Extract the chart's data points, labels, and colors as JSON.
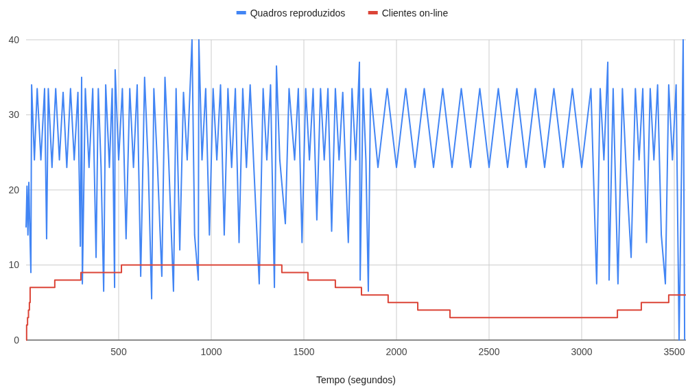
{
  "chart_data": {
    "type": "line",
    "xlabel": "Tempo (segundos)",
    "xlim": [
      0,
      3563
    ],
    "xticks": [
      500,
      1000,
      1500,
      2000,
      2500,
      3000,
      3500
    ],
    "ylim": [
      0,
      40
    ],
    "yticks": [
      0,
      10,
      20,
      30,
      40
    ],
    "grid": true,
    "legend": "top",
    "series": [
      {
        "name": "Quadros reproduzidos",
        "color": "#4285f4",
        "x": [
          0,
          5,
          10,
          15,
          20,
          26,
          30,
          45,
          60,
          80,
          100,
          111,
          120,
          140,
          160,
          180,
          200,
          220,
          240,
          260,
          280,
          293,
          300,
          304,
          320,
          340,
          360,
          378,
          390,
          405,
          419,
          430,
          450,
          465,
          478,
          481,
          500,
          520,
          540,
          560,
          580,
          600,
          619,
          640,
          660,
          678,
          690,
          710,
          733,
          750,
          770,
          796,
          810,
          830,
          850,
          870,
          896,
          910,
          930,
          933,
          950,
          970,
          990,
          1010,
          1030,
          1050,
          1070,
          1090,
          1110,
          1130,
          1150,
          1170,
          1190,
          1210,
          1230,
          1259,
          1280,
          1300,
          1320,
          1341,
          1352,
          1370,
          1400,
          1420,
          1450,
          1470,
          1490,
          1510,
          1530,
          1550,
          1570,
          1590,
          1610,
          1630,
          1650,
          1670,
          1690,
          1710,
          1740,
          1760,
          1780,
          1800,
          1804,
          1820,
          1835,
          1848,
          1860,
          1900,
          1950,
          2000,
          2050,
          2100,
          2150,
          2200,
          2250,
          2300,
          2350,
          2400,
          2450,
          2500,
          2550,
          2600,
          2650,
          2700,
          2750,
          2800,
          2850,
          2900,
          2950,
          3000,
          3050,
          3081,
          3100,
          3120,
          3141,
          3148,
          3170,
          3196,
          3220,
          3240,
          3267,
          3290,
          3310,
          3330,
          3350,
          3370,
          3390,
          3410,
          3430,
          3452,
          3470,
          3490,
          3510,
          3526,
          3540,
          3548,
          3556
        ],
        "values": [
          15,
          20.5,
          14,
          21,
          15,
          9,
          34,
          24,
          33.5,
          24,
          33.5,
          13.5,
          33.5,
          23,
          33.5,
          24,
          33,
          23,
          33.5,
          24,
          33,
          12.5,
          35,
          7.5,
          33.5,
          23,
          33.5,
          11,
          33.5,
          23,
          6.5,
          34,
          23,
          33.5,
          7,
          36,
          24,
          33.5,
          13.5,
          33.5,
          23,
          34,
          8.5,
          35,
          23,
          5.5,
          33.5,
          23,
          8.5,
          35,
          24,
          6.5,
          33.5,
          12,
          33,
          24,
          40,
          14,
          8,
          40,
          24,
          33.5,
          14,
          33.5,
          24,
          34,
          14,
          33.5,
          23,
          33.5,
          13,
          33.5,
          23,
          34,
          23,
          7.5,
          33.5,
          24,
          34,
          7,
          36.5,
          24,
          15.5,
          33.5,
          24,
          33.5,
          13,
          33.5,
          24,
          33.5,
          16,
          33.5,
          24,
          33.5,
          14.5,
          33.5,
          24,
          33,
          13,
          33.5,
          24,
          37,
          8,
          33.5,
          24,
          6.5,
          33.5,
          23,
          33.5,
          23,
          33.5,
          23,
          33.5,
          23,
          33.5,
          23,
          33.5,
          23,
          33.5,
          23,
          33.5,
          23,
          33.5,
          23,
          33.5,
          23,
          33.5,
          23,
          33.5,
          23,
          33.5,
          7.5,
          33.5,
          24,
          37,
          8,
          33.5,
          7.5,
          33.5,
          23,
          11,
          33.5,
          24,
          33.5,
          13,
          33.5,
          24,
          34,
          14,
          7.5,
          34,
          24,
          34,
          0,
          24,
          40,
          0
        ]
      },
      {
        "name": "Clientes on-line",
        "color": "#db4437",
        "type": "step",
        "x": [
          0,
          3,
          8,
          13,
          18,
          22,
          155,
          296,
          515,
          1381,
          1522,
          1670,
          1811,
          1955,
          2115,
          2289,
          3193,
          3322,
          3470,
          3563
        ],
        "values": [
          0,
          2,
          3,
          4,
          5,
          7,
          8,
          9,
          10,
          9,
          8,
          7,
          6,
          5,
          4,
          3,
          4,
          5,
          6,
          6
        ]
      }
    ]
  }
}
